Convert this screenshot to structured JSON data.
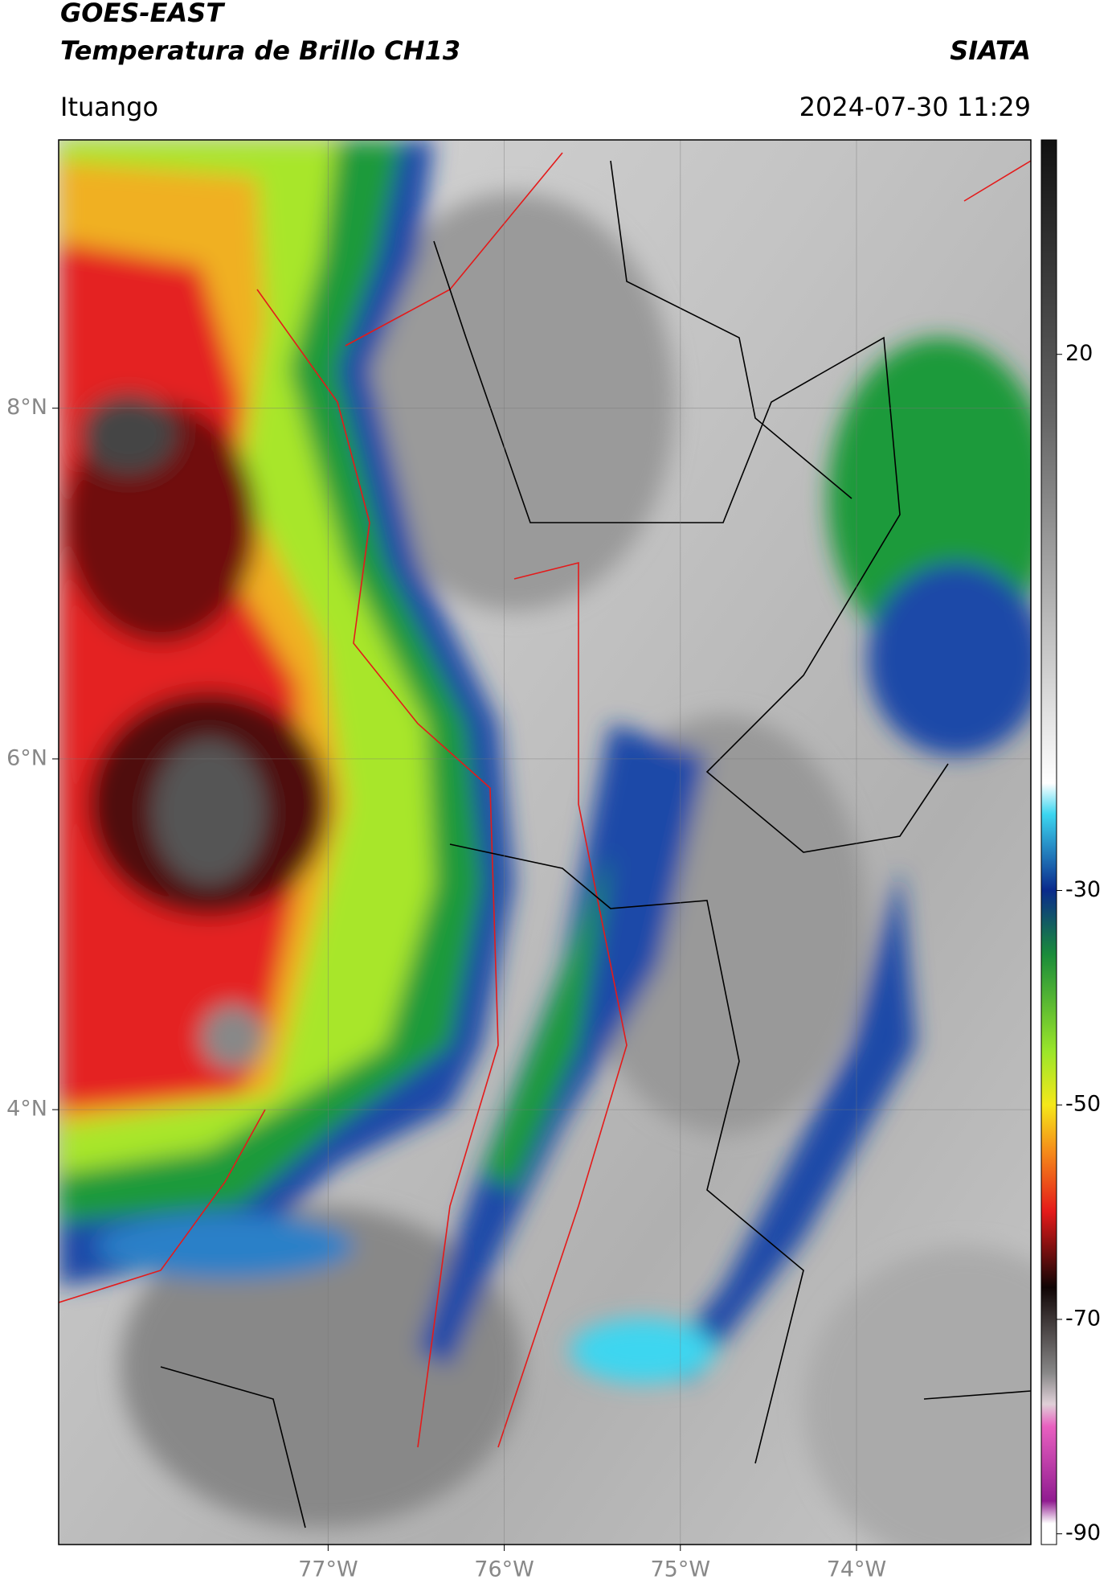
{
  "header": {
    "title_line1": "GOES-EAST",
    "title_line2": "Temperatura de Brillo CH13",
    "brand": "SIATA",
    "location": "Ituango",
    "datetime": "2024-07-30 11:29"
  },
  "map": {
    "lonlim": [
      -78.53,
      -73.01
    ],
    "latlim": [
      1.52,
      9.53
    ],
    "lon_ticks": [
      {
        "value": -77,
        "label": "77°W"
      },
      {
        "value": -76,
        "label": "76°W"
      },
      {
        "value": -75,
        "label": "75°W"
      },
      {
        "value": -74,
        "label": "74°W"
      }
    ],
    "lat_ticks": [
      {
        "value": 8,
        "label": "8°N"
      },
      {
        "value": 6,
        "label": "6°N"
      },
      {
        "value": 4,
        "label": "4°N"
      }
    ]
  },
  "colorbar": {
    "lim": [
      -91,
      40
    ],
    "ticks": [
      20,
      -30,
      -50,
      -70,
      -90
    ]
  }
}
